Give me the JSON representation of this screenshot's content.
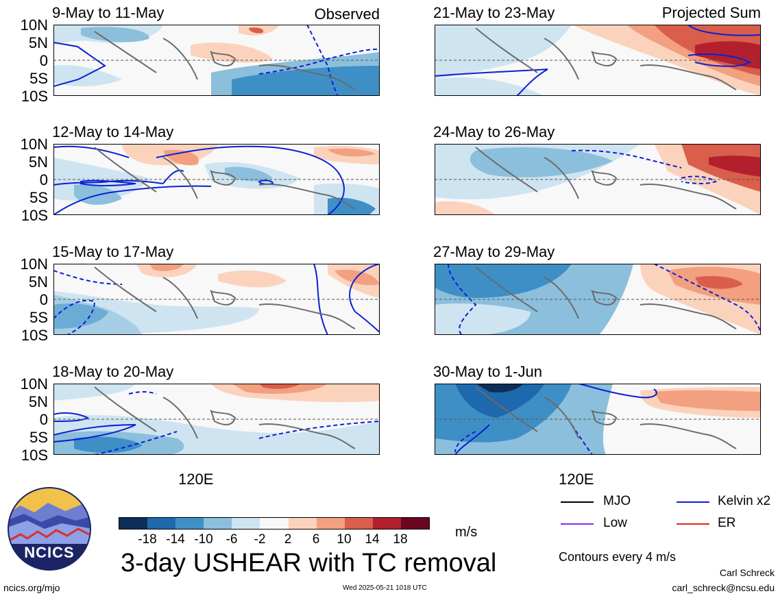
{
  "figure": {
    "title": "3-day USHEAR with TC removal",
    "corner_left": "Observed",
    "corner_right": "Projected Sum",
    "longitude_label": "120E",
    "lat_ticks": [
      "10N",
      "5N",
      "0",
      "5S",
      "10S"
    ]
  },
  "panels_left": [
    {
      "title": "9-May to 11-May"
    },
    {
      "title": "12-May to 14-May"
    },
    {
      "title": "15-May to 17-May"
    },
    {
      "title": "18-May to 20-May"
    }
  ],
  "panels_right": [
    {
      "title": "21-May to 23-May"
    },
    {
      "title": "24-May to 26-May"
    },
    {
      "title": "27-May to 29-May"
    },
    {
      "title": "30-May to 1-Jun"
    }
  ],
  "colorbar": {
    "unit": "m/s",
    "ticks": [
      "-18",
      "-14",
      "-10",
      "-6",
      "-2",
      "2",
      "6",
      "10",
      "14",
      "18"
    ],
    "colors": [
      "#0d2f57",
      "#1e68ad",
      "#3f8fc7",
      "#8bbfdc",
      "#cfe4f1",
      "#f8f8f8",
      "#fbd3bd",
      "#f2a07f",
      "#d95e4b",
      "#b2202e",
      "#6a0620"
    ]
  },
  "legend": {
    "items": [
      {
        "label": "MJO",
        "color": "#000000"
      },
      {
        "label": "Kelvin x2",
        "color": "#0a1fd6"
      },
      {
        "label": "Low",
        "color": "#8a2be2"
      },
      {
        "label": "ER",
        "color": "#e3221c"
      }
    ],
    "note": "Contours every 4 m/s"
  },
  "logo": {
    "text": "NCICS"
  },
  "footer": {
    "left": "ncics.org/mjo",
    "center": "Wed 2025-05-21 1018 UTC",
    "right_name": "Carl Schreck",
    "right_email": "carl_schreck@ncsu.edu"
  }
}
